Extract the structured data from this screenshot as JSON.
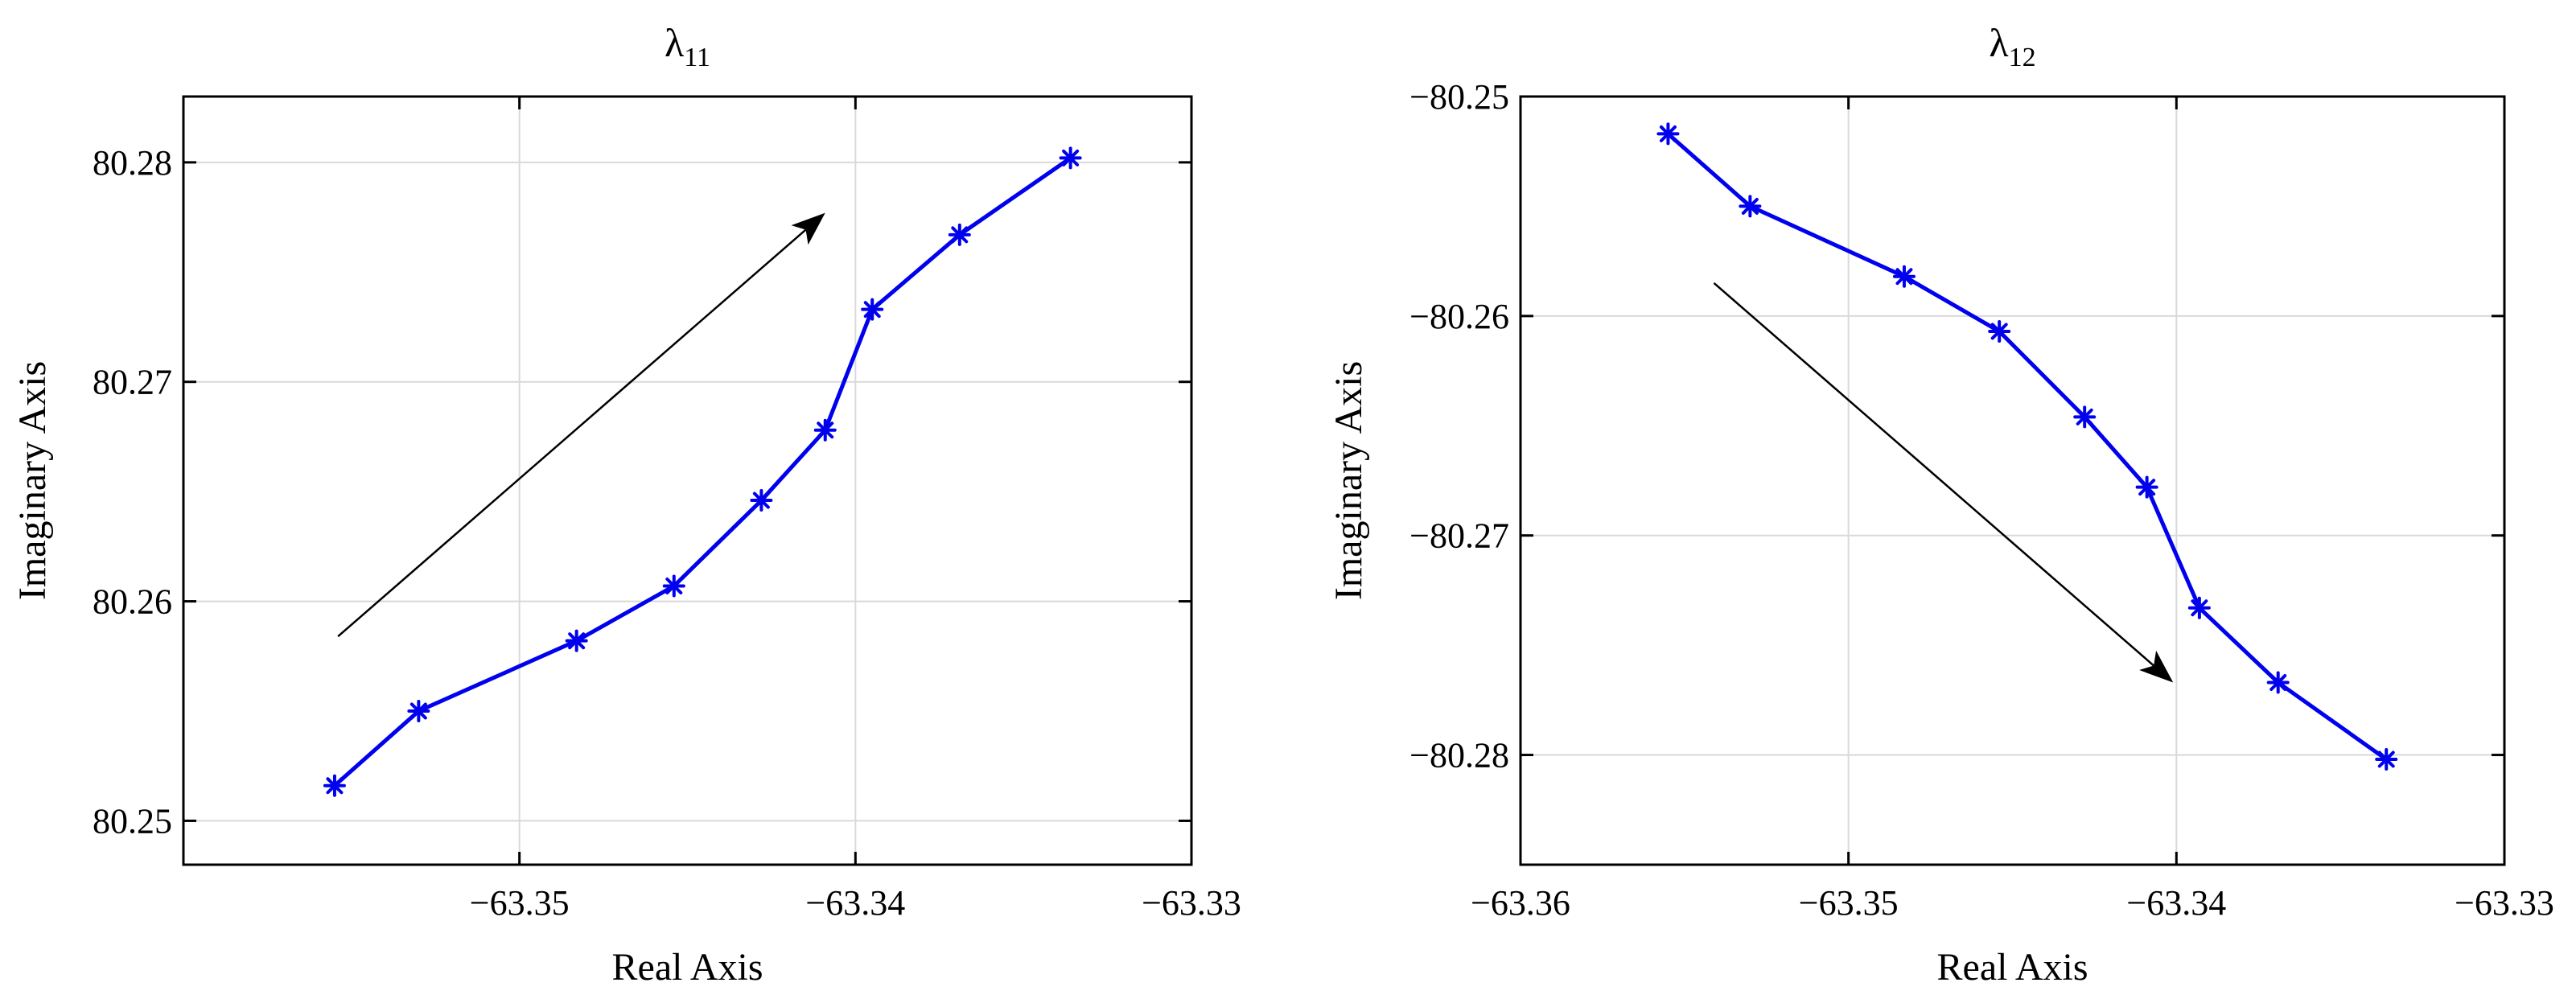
{
  "chart_data": [
    {
      "type": "line",
      "title": "λ",
      "title_subscript": "11",
      "xlabel": "Real Axis",
      "ylabel": "Imaginary Axis",
      "xlim": [
        -63.36,
        -63.33
      ],
      "ylim": [
        80.248,
        80.283
      ],
      "xticks": [
        -63.35,
        -63.34,
        -63.33
      ],
      "yticks": [
        80.25,
        80.26,
        80.27,
        80.28
      ],
      "xtick_labels": [
        "−63.35",
        "−63.34",
        "−63.33"
      ],
      "ytick_labels": [
        "80.25",
        "80.26",
        "80.27",
        "80.28"
      ],
      "grid": true,
      "series": [
        {
          "color": "#0000ee",
          "marker": "asterisk",
          "x": [
            -63.3555,
            -63.353,
            -63.3483,
            -63.3454,
            -63.3428,
            -63.3409,
            -63.3395,
            -63.3369,
            -63.3336
          ],
          "y": [
            80.2516,
            80.255,
            80.2582,
            80.2607,
            80.2646,
            80.2678,
            80.2733,
            80.2767,
            80.2802
          ]
        }
      ],
      "annotations": [
        {
          "type": "arrow",
          "x1": -63.3554,
          "y1": 80.2584,
          "x2": -63.3409,
          "y2": 80.2777
        }
      ]
    },
    {
      "type": "line",
      "title": "λ",
      "title_subscript": "12",
      "xlabel": "Real Axis",
      "ylabel": "Imaginary Axis",
      "xlim": [
        -63.36,
        -63.33
      ],
      "ylim": [
        -80.285,
        -80.25
      ],
      "xticks": [
        -63.36,
        -63.35,
        -63.34,
        -63.33
      ],
      "yticks": [
        -80.25,
        -80.26,
        -80.27,
        -80.28
      ],
      "xtick_labels": [
        "−63.36",
        "−63.35",
        "−63.34",
        "−63.33"
      ],
      "ytick_labels": [
        "−80.25",
        "−80.26",
        "−80.27",
        "−80.28"
      ],
      "grid": true,
      "series": [
        {
          "color": "#0000ee",
          "marker": "asterisk",
          "x": [
            -63.3555,
            -63.353,
            -63.3483,
            -63.3454,
            -63.3428,
            -63.3409,
            -63.3393,
            -63.3369,
            -63.3336
          ],
          "y": [
            -80.2517,
            -80.255,
            -80.2582,
            -80.2607,
            -80.2646,
            -80.2678,
            -80.2733,
            -80.2767,
            -80.2802
          ]
        }
      ],
      "annotations": [
        {
          "type": "arrow",
          "x1": -63.3541,
          "y1": -80.2585,
          "x2": -63.3401,
          "y2": -80.2767
        }
      ]
    }
  ]
}
